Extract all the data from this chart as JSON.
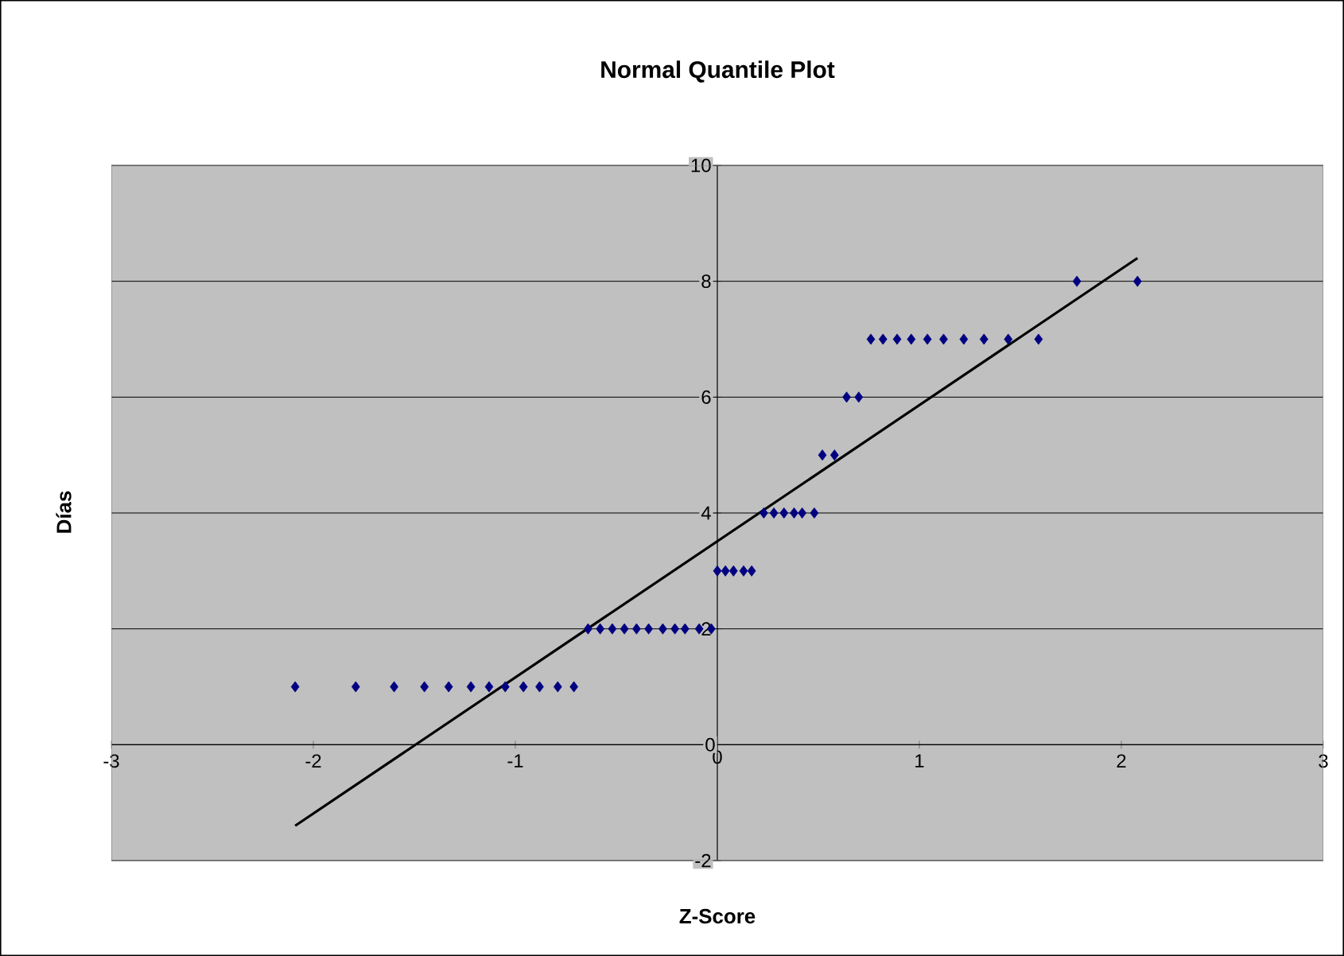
{
  "chart_data": {
    "type": "scatter",
    "title": "Normal Quantile Plot",
    "xlabel": "Z-Score",
    "ylabel": "Días",
    "xlim": [
      -3,
      3
    ],
    "ylim": [
      -2,
      10
    ],
    "xticks": [
      -3,
      -2,
      -1,
      0,
      1,
      2,
      3
    ],
    "yticks": [
      -2,
      0,
      2,
      4,
      6,
      8,
      10
    ],
    "grid": "y",
    "series": [
      {
        "type": "scatter",
        "marker": "diamond",
        "color": "#000080",
        "x": [
          -2.09,
          -1.79,
          -1.6,
          -1.45,
          -1.33,
          -1.22,
          -1.13,
          -1.05,
          -0.96,
          -0.88,
          -0.79,
          -0.71,
          -0.64,
          -0.58,
          -0.52,
          -0.46,
          -0.4,
          -0.34,
          -0.27,
          -0.21,
          -0.16,
          -0.09,
          -0.03,
          0.0,
          0.04,
          0.08,
          0.13,
          0.17,
          0.23,
          0.28,
          0.33,
          0.38,
          0.42,
          0.48,
          0.52,
          0.58,
          0.64,
          0.7,
          0.76,
          0.82,
          0.89,
          0.96,
          1.04,
          1.12,
          1.22,
          1.32,
          1.44,
          1.59,
          1.78,
          2.08
        ],
        "values": [
          1,
          1,
          1,
          1,
          1,
          1,
          1,
          1,
          1,
          1,
          1,
          1,
          2,
          2,
          2,
          2,
          2,
          2,
          2,
          2,
          2,
          2,
          2,
          3,
          3,
          3,
          3,
          3,
          4,
          4,
          4,
          4,
          4,
          4,
          5,
          5,
          6,
          6,
          7,
          7,
          7,
          7,
          7,
          7,
          7,
          7,
          7,
          7,
          8,
          8
        ]
      },
      {
        "type": "line",
        "marker": "none",
        "color": "#000000",
        "x": [
          -2.09,
          2.08
        ],
        "values": [
          -1.4,
          8.4
        ]
      }
    ]
  }
}
